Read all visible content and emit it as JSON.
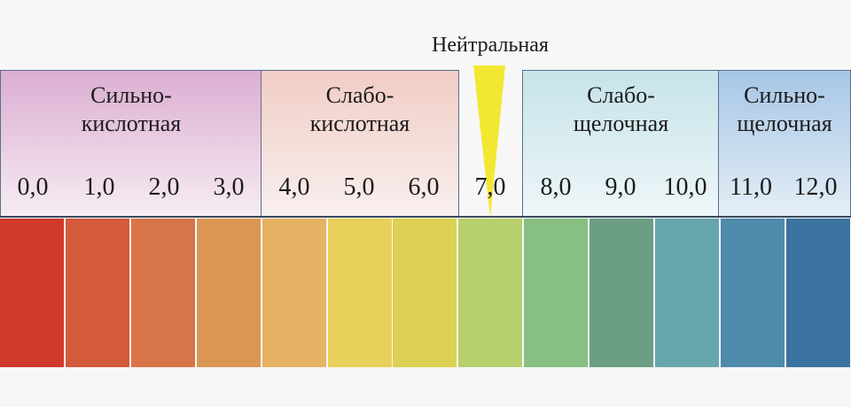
{
  "neutral": {
    "label": "Нейтральная",
    "marker_color": "#f2e832",
    "value": 7.0
  },
  "zones": [
    {
      "line1": "Сильно-",
      "line2": "кислотная",
      "color": "#e6c3dc"
    },
    {
      "line1": "Слабо-",
      "line2": "кислотная",
      "color": "#f3d9d4"
    },
    {
      "line1": "Слабо-",
      "line2": "щелочная",
      "color": "#d3e9ee"
    },
    {
      "line1": "Сильно-",
      "line2": "щелочная",
      "color": "#b5d0ea"
    }
  ],
  "ticks": [
    "0,0",
    "1,0",
    "2,0",
    "3,0",
    "4,0",
    "5,0",
    "6,0",
    "7,0",
    "8,0",
    "9,0",
    "10,0",
    "11,0",
    "12,0"
  ],
  "swatch_colors": [
    "#cf3a2a",
    "#d45a3c",
    "#d87548",
    "#dc9654",
    "#e6b264",
    "#e8d05a",
    "#dcd152",
    "#b8cf6e",
    "#88bf82",
    "#6c9e84",
    "#67a6ad",
    "#4e8aaa",
    "#3c73a0"
  ]
}
